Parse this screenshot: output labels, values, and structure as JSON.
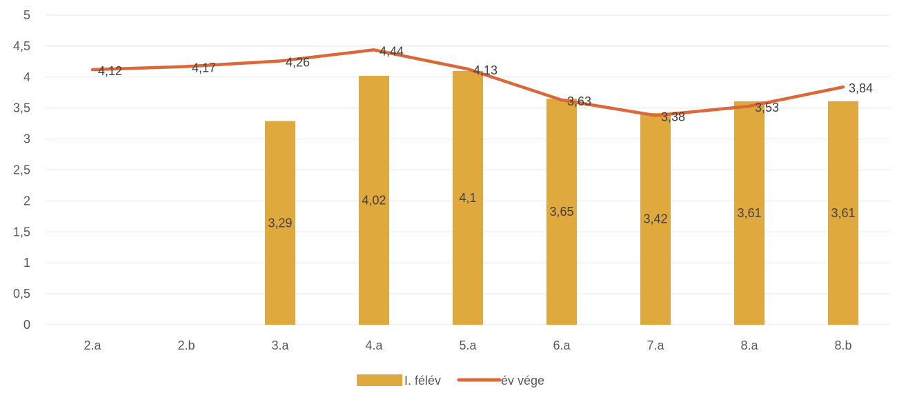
{
  "chart_data": {
    "type": "bar",
    "categories": [
      "2.a",
      "2.b",
      "3.a",
      "4.a",
      "5.a",
      "6.a",
      "7.a",
      "8.a",
      "8.b"
    ],
    "series": [
      {
        "name": "I. félév",
        "type": "bar",
        "values": [
          null,
          null,
          3.29,
          4.02,
          4.1,
          3.65,
          3.42,
          3.61,
          3.61
        ],
        "labels": [
          "",
          "",
          "3,29",
          "4,02",
          "4,1",
          "3,65",
          "3,42",
          "3,61",
          "3,61"
        ],
        "color": "#E0A93E"
      },
      {
        "name": "év vége",
        "type": "line",
        "values": [
          4.12,
          4.17,
          4.26,
          4.44,
          4.13,
          3.63,
          3.38,
          3.53,
          3.84
        ],
        "labels": [
          "4,12",
          "4,17",
          "4,26",
          "4,44",
          "4,13",
          "3,63",
          "3,38",
          "3,53",
          "3,84"
        ],
        "color": "#D9693A"
      }
    ],
    "y_ticks": [
      "0",
      "0,5",
      "1",
      "1,5",
      "2",
      "2,5",
      "3",
      "3,5",
      "4",
      "4,5",
      "5"
    ],
    "ylim": [
      0,
      5
    ],
    "grid": true,
    "legend_position": "bottom",
    "title": "",
    "xlabel": "",
    "ylabel": ""
  }
}
